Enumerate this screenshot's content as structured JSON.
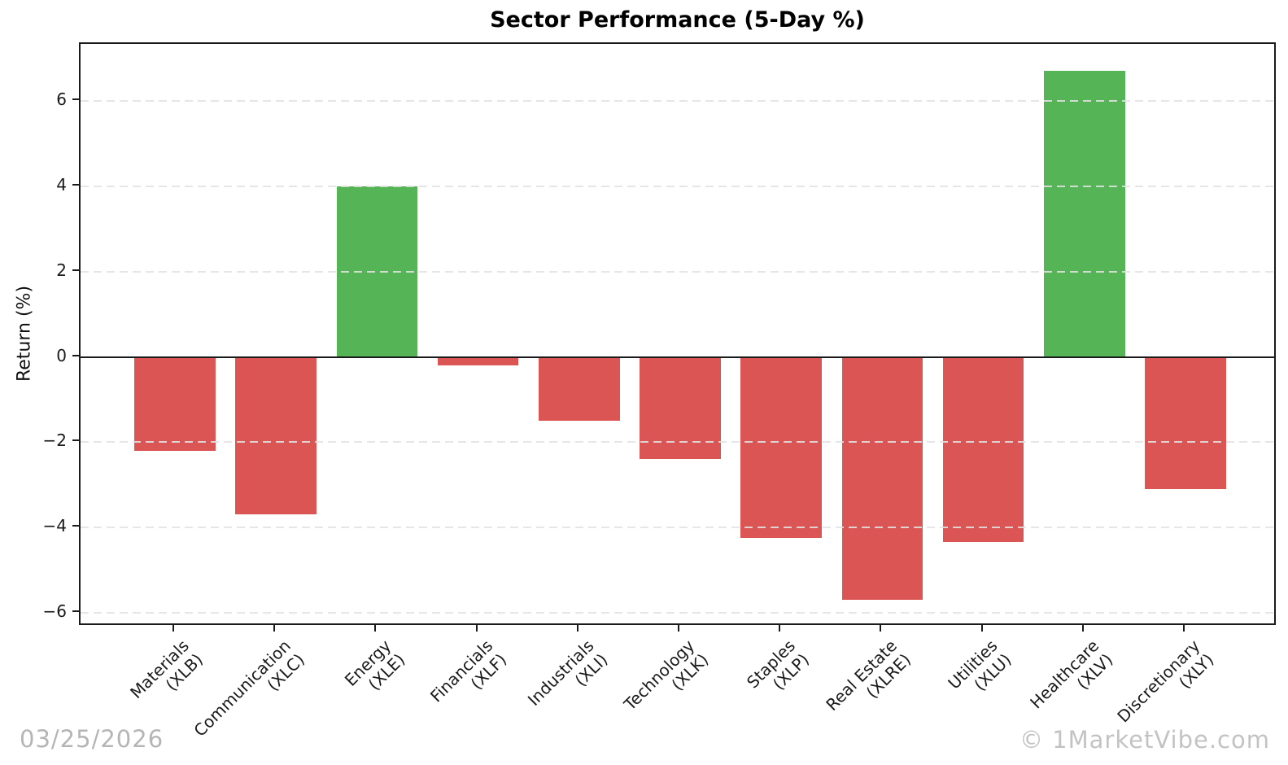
{
  "chart_data": {
    "type": "bar",
    "title": "Sector Performance (5-Day %)",
    "xlabel": "",
    "ylabel": "Return (%)",
    "categories": [
      "Materials",
      "Communication",
      "Energy",
      "Financials",
      "Industrials",
      "Technology",
      "Staples",
      "Real Estate",
      "Utilities",
      "Healthcare",
      "Discretionary"
    ],
    "tickers": [
      "(XLB)",
      "(XLC)",
      "(XLE)",
      "(XLF)",
      "(XLI)",
      "(XLK)",
      "(XLP)",
      "(XLRE)",
      "(XLU)",
      "(XLV)",
      "(XLY)"
    ],
    "values": [
      -2.2,
      -3.7,
      4.0,
      -0.2,
      -1.5,
      -2.4,
      -4.25,
      -5.7,
      -4.35,
      6.7,
      -3.1
    ],
    "yticks": [
      -6,
      -4,
      -2,
      0,
      2,
      4,
      6
    ],
    "ylim": [
      -6.33,
      7.34
    ],
    "grid": "horizontal-dashed",
    "legend": "none",
    "positive_color": "#55b456",
    "negative_color": "#db5554"
  },
  "footer": {
    "date": "03/25/2026",
    "watermark": "© 1MarketVibe.com"
  }
}
